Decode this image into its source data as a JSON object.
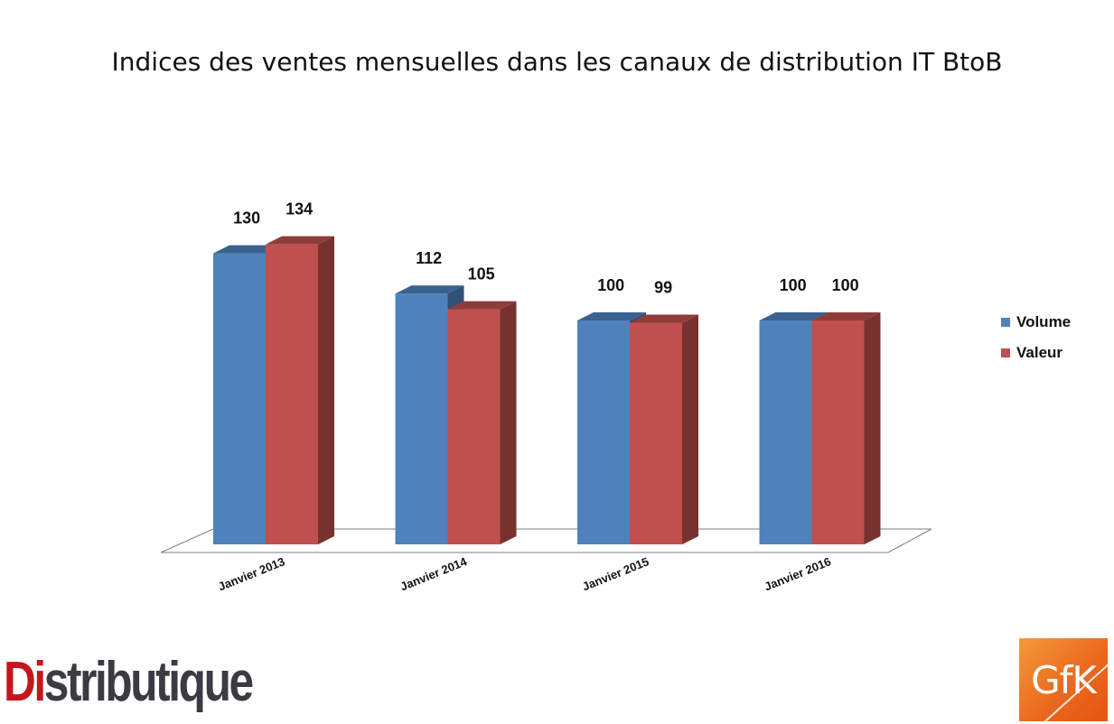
{
  "chart_data": {
    "type": "bar",
    "title": "Indices des ventes mensuelles dans les canaux de distribution IT BtoB",
    "categories": [
      "Janvier 2013",
      "Janvier 2014",
      "Janvier 2015",
      "Janvier 2016"
    ],
    "series": [
      {
        "name": "Volume",
        "values": [
          130,
          112,
          100,
          100
        ],
        "color": "#4f81bd"
      },
      {
        "name": "Valeur",
        "values": [
          134,
          105,
          99,
          100
        ],
        "color": "#c0504d"
      }
    ],
    "xlabel": "",
    "ylabel": "",
    "ylim": [
      0,
      134
    ],
    "grid": false,
    "legend_position": "right",
    "style": "3d-clustered-column"
  },
  "logos": {
    "left": {
      "prefix": "Di",
      "rest": "stributique"
    },
    "right": "GfK"
  }
}
